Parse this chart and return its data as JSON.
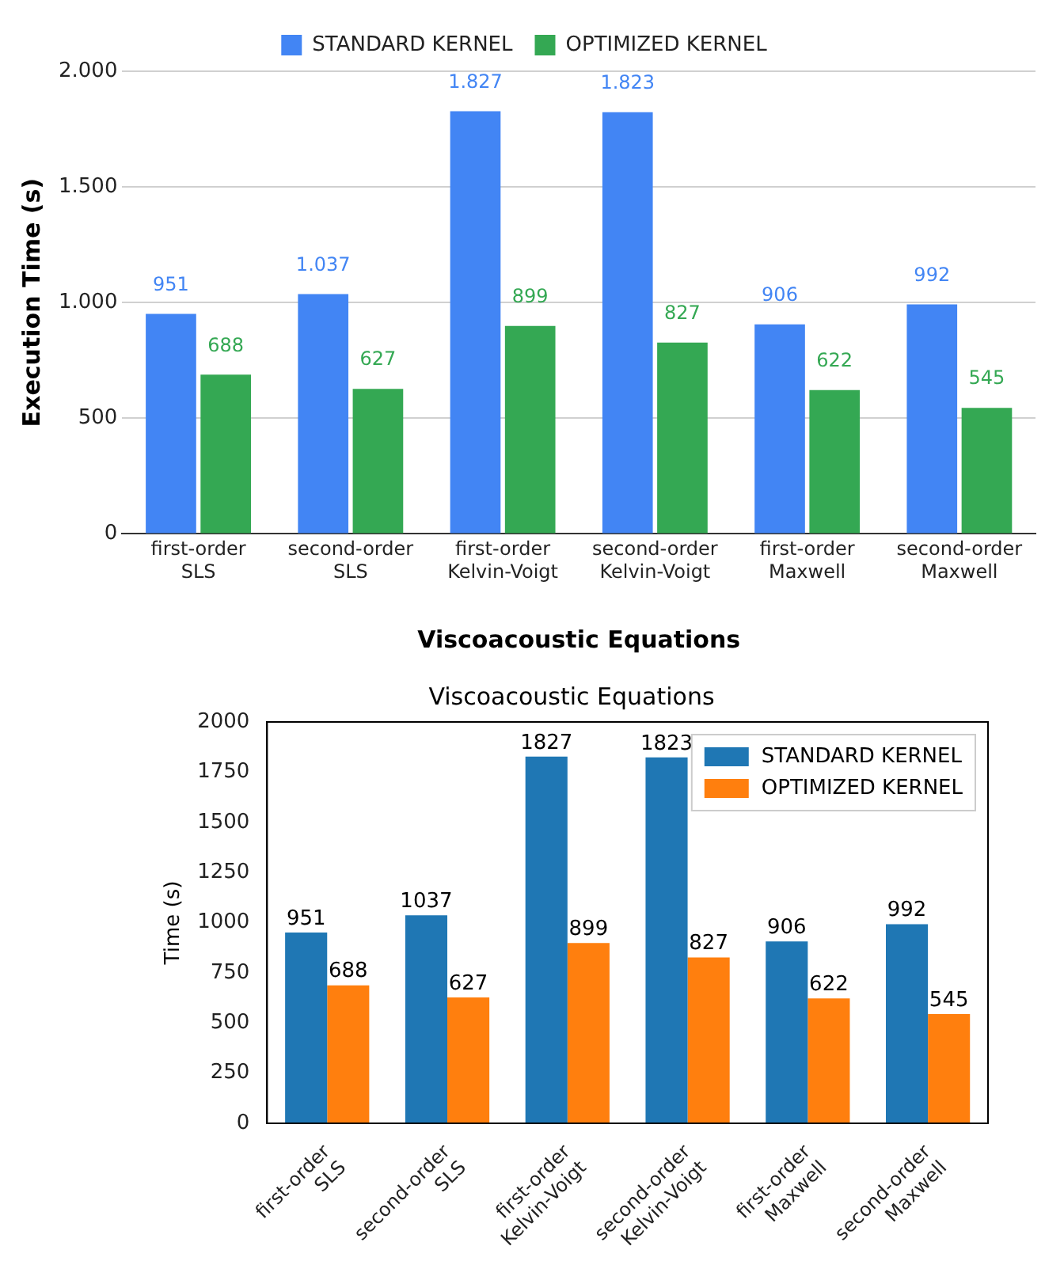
{
  "chart_data": [
    {
      "type": "bar",
      "xlabel": "Viscoacoustic Equations",
      "ylabel": "Execution Time (s)",
      "categories": [
        "first-order SLS",
        "second-order SLS",
        "first-order Kelvin-Voigt",
        "second-order Kelvin-Voigt",
        "first-order Maxwell",
        "second-order Maxwell"
      ],
      "series": [
        {
          "name": "STANDARD KERNEL",
          "color": "#4285f4",
          "values": [
            951,
            1037,
            1827,
            1823,
            906,
            992
          ],
          "value_labels": [
            "951",
            "1.037",
            "1.827",
            "1.823",
            "906",
            "992"
          ]
        },
        {
          "name": "OPTIMIZED KERNEL",
          "color": "#34a853",
          "values": [
            688,
            627,
            899,
            827,
            622,
            545
          ],
          "value_labels": [
            "688",
            "627",
            "899",
            "827",
            "622",
            "545"
          ]
        }
      ],
      "ylim": [
        0,
        2000
      ],
      "yticks": [
        0,
        {
          "value": 500,
          "label": "500"
        },
        {
          "value": 1000,
          "label": "1.000"
        },
        {
          "value": 1500,
          "label": "1.500"
        },
        {
          "value": 2000,
          "label": "2.000"
        }
      ],
      "grid": "y",
      "legend": "top"
    },
    {
      "type": "bar",
      "title": "Viscoacoustic Equations",
      "ylabel": "Time (s)",
      "categories": [
        "first-order SLS",
        "second-order SLS",
        "first-order Kelvin-Voigt",
        "second-order Kelvin-Voigt",
        "first-order Maxwell",
        "second-order Maxwell"
      ],
      "series": [
        {
          "name": "STANDARD KERNEL",
          "color": "#1f77b4",
          "values": [
            951,
            1037,
            1827,
            1823,
            906,
            992
          ]
        },
        {
          "name": "OPTIMIZED KERNEL",
          "color": "#ff7f0e",
          "values": [
            688,
            627,
            899,
            827,
            622,
            545
          ]
        }
      ],
      "ylim": [
        0,
        2000
      ],
      "yticks": [
        0,
        250,
        500,
        750,
        1000,
        1250,
        1500,
        1750,
        2000
      ],
      "data_labels": true,
      "grid": false,
      "legend": "top right"
    }
  ]
}
